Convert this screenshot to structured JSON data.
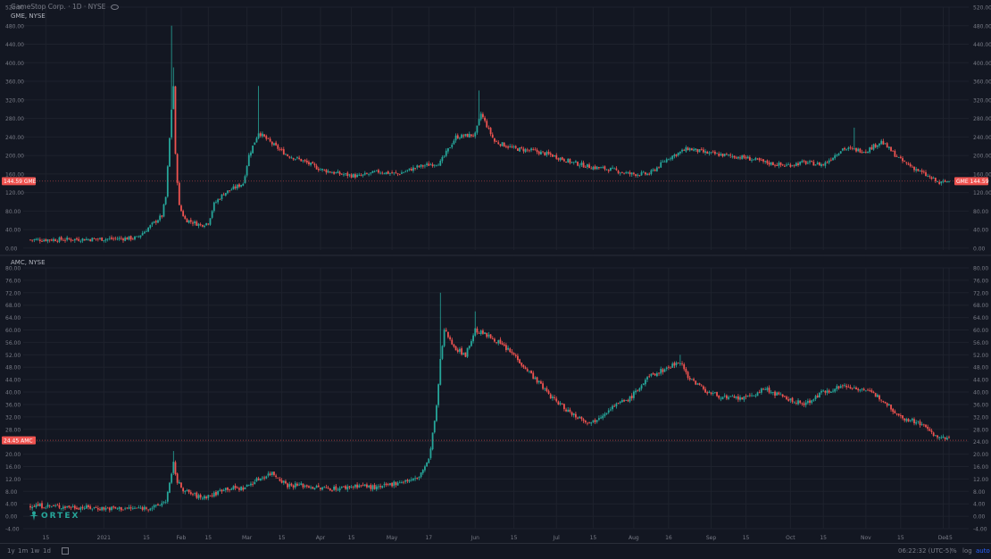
{
  "colors": {
    "up": "#26a69a",
    "down": "#ef5350",
    "bg": "#131722",
    "grid": "#1e222d",
    "text": "#787b86",
    "badge": "#ef5350"
  },
  "panel1": {
    "title": "GameStop Corp. · 1D · NYSE",
    "symbol_line": "GME, NYSE",
    "eye_icon": "eye-icon"
  },
  "panel2": {
    "symbol_line": "AMC, NYSE"
  },
  "watermark": {
    "text": "ORTEX",
    "icon": "ortex-logo-icon"
  },
  "bottom": {
    "timeframes": [
      "1y",
      "1m",
      "1w",
      "1d"
    ],
    "calendar_icon": "calendar-icon",
    "time": "06:22:32 (UTC-5)",
    "pct": "%",
    "log": "log",
    "auto": "auto"
  },
  "chart_data": [
    {
      "type": "candlestick",
      "symbol": "GME",
      "last_price_label": "144.59",
      "last_price": 144.59,
      "last_symbol_tag": "GME",
      "ylim": [
        -4,
        520
      ],
      "yticks": [
        "520.00",
        "480.00",
        "440.00",
        "400.00",
        "360.00",
        "320.00",
        "280.00",
        "240.00",
        "200.00",
        "160.00",
        "120.00",
        "80.00",
        "40.00",
        "0.00"
      ],
      "x_tick_labels": [
        "15",
        "2021",
        "15",
        "Feb",
        "15",
        "Mar",
        "15",
        "Apr",
        "15",
        "May",
        "17",
        "Jun",
        "15",
        "Jul",
        "15",
        "Aug",
        "16",
        "Sep",
        "15",
        "Oct",
        "15",
        "Nov",
        "15",
        "Dec",
        "15"
      ],
      "anchors": [
        [
          0,
          18
        ],
        [
          20,
          19
        ],
        [
          40,
          20
        ],
        [
          55,
          22
        ],
        [
          60,
          40
        ],
        [
          68,
          70
        ],
        [
          70,
          110
        ],
        [
          73,
          300
        ],
        [
          74,
          350
        ],
        [
          75,
          200
        ],
        [
          77,
          90
        ],
        [
          80,
          62
        ],
        [
          88,
          50
        ],
        [
          92,
          55
        ],
        [
          95,
          95
        ],
        [
          100,
          118
        ],
        [
          110,
          140
        ],
        [
          113,
          200
        ],
        [
          118,
          250
        ],
        [
          125,
          225
        ],
        [
          133,
          200
        ],
        [
          140,
          190
        ],
        [
          150,
          170
        ],
        [
          160,
          160
        ],
        [
          170,
          155
        ],
        [
          180,
          165
        ],
        [
          190,
          160
        ],
        [
          200,
          175
        ],
        [
          212,
          185
        ],
        [
          220,
          240
        ],
        [
          230,
          245
        ],
        [
          233,
          290
        ],
        [
          240,
          230
        ],
        [
          250,
          215
        ],
        [
          260,
          210
        ],
        [
          270,
          200
        ],
        [
          280,
          185
        ],
        [
          290,
          175
        ],
        [
          300,
          170
        ],
        [
          310,
          160
        ],
        [
          320,
          160
        ],
        [
          330,
          195
        ],
        [
          340,
          215
        ],
        [
          350,
          205
        ],
        [
          360,
          200
        ],
        [
          370,
          195
        ],
        [
          380,
          185
        ],
        [
          390,
          178
        ],
        [
          400,
          185
        ],
        [
          410,
          180
        ],
        [
          420,
          215
        ],
        [
          432,
          210
        ],
        [
          440,
          230
        ],
        [
          450,
          190
        ],
        [
          460,
          165
        ],
        [
          470,
          140
        ],
        [
          475,
          145
        ]
      ],
      "spikes": [
        [
          73,
          480
        ],
        [
          74,
          390
        ],
        [
          118,
          350
        ],
        [
          232,
          340
        ],
        [
          426,
          260
        ]
      ]
    },
    {
      "type": "candlestick",
      "symbol": "AMC",
      "last_price_label": "24.45",
      "last_price": 24.45,
      "last_symbol_tag": "AMC",
      "ylim": [
        -4,
        80
      ],
      "yticks": [
        "80.00",
        "76.00",
        "72.00",
        "68.00",
        "64.00",
        "60.00",
        "56.00",
        "52.00",
        "48.00",
        "44.00",
        "40.00",
        "36.00",
        "32.00",
        "28.00",
        "24.00",
        "20.00",
        "16.00",
        "12.00",
        "8.00",
        "4.00",
        "0.00",
        "-4.00"
      ],
      "x_tick_labels": [
        "15",
        "2021",
        "15",
        "Feb",
        "15",
        "Mar",
        "15",
        "Apr",
        "15",
        "May",
        "17",
        "Jun",
        "15",
        "Jul",
        "15",
        "Aug",
        "16",
        "Sep",
        "15",
        "Oct",
        "15",
        "Nov",
        "15",
        "Dec",
        "15"
      ],
      "anchors": [
        [
          0,
          3.5
        ],
        [
          20,
          3
        ],
        [
          40,
          2.5
        ],
        [
          55,
          2.5
        ],
        [
          65,
          3
        ],
        [
          70,
          5
        ],
        [
          73,
          13
        ],
        [
          74,
          17
        ],
        [
          76,
          11
        ],
        [
          80,
          8
        ],
        [
          88,
          6
        ],
        [
          95,
          7
        ],
        [
          100,
          9
        ],
        [
          110,
          9
        ],
        [
          118,
          12
        ],
        [
          125,
          14
        ],
        [
          133,
          10
        ],
        [
          140,
          10
        ],
        [
          150,
          9
        ],
        [
          160,
          9
        ],
        [
          170,
          10
        ],
        [
          180,
          9
        ],
        [
          190,
          11
        ],
        [
          200,
          12
        ],
        [
          206,
          18
        ],
        [
          210,
          35
        ],
        [
          212,
          50
        ],
        [
          214,
          60
        ],
        [
          216,
          58
        ],
        [
          220,
          54
        ],
        [
          225,
          52
        ],
        [
          230,
          60
        ],
        [
          240,
          57
        ],
        [
          250,
          52
        ],
        [
          260,
          45
        ],
        [
          270,
          38
        ],
        [
          280,
          33
        ],
        [
          290,
          30
        ],
        [
          300,
          35
        ],
        [
          310,
          38
        ],
        [
          320,
          45
        ],
        [
          330,
          48
        ],
        [
          336,
          50
        ],
        [
          340,
          45
        ],
        [
          350,
          40
        ],
        [
          360,
          38
        ],
        [
          370,
          38
        ],
        [
          380,
          41
        ],
        [
          390,
          38
        ],
        [
          400,
          36
        ],
        [
          410,
          40
        ],
        [
          420,
          42
        ],
        [
          430,
          41
        ],
        [
          440,
          38
        ],
        [
          450,
          32
        ],
        [
          460,
          30
        ],
        [
          470,
          25
        ],
        [
          475,
          25
        ]
      ],
      "spikes": [
        [
          74,
          21
        ],
        [
          212,
          72
        ],
        [
          230,
          66
        ],
        [
          336,
          52
        ]
      ]
    }
  ]
}
